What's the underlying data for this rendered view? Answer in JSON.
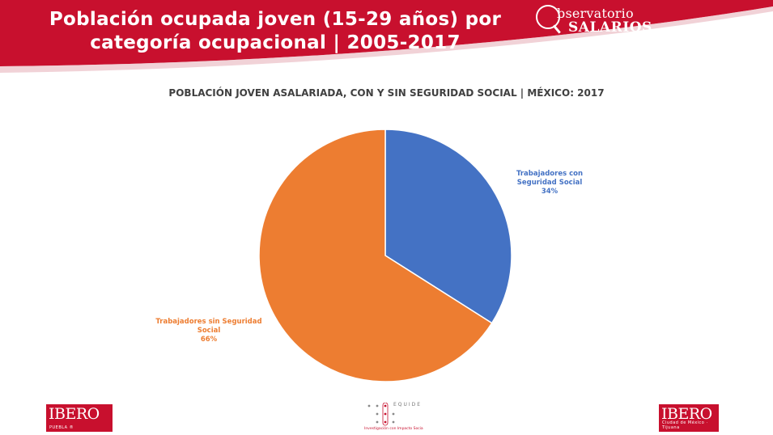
{
  "header": {
    "title_line1": "Población ocupada joven (15-29 años) por",
    "title_line2": "categoría ocupacional | 2005-2017",
    "brand_line1": "bservatorio",
    "brand_line2": "SALARIOS",
    "brand_color": "#C8102E"
  },
  "chart_data": {
    "type": "pie",
    "title": "POBLACIÓN JOVEN ASALARIADA, CON Y SIN SEGURIDAD SOCIAL | MÉXICO: 2017",
    "slices": [
      {
        "label": "Trabajadores con Seguridad Social",
        "value": 34,
        "display": "34%",
        "color": "#4472C4"
      },
      {
        "label": "Trabajadores sin Seguridad Social",
        "value": 66,
        "display": "66%",
        "color": "#ED7D31"
      }
    ],
    "start": "12 o'clock",
    "direction": "clockwise"
  },
  "footer": {
    "logo_left_word": "IBERO",
    "logo_left_sub": "PUEBLA ®",
    "equide_name": "EQUIDE",
    "equide_tagline": "Investigación con Impacto Socia",
    "logo_right_word": "IBERO",
    "logo_right_sub": "Ciudad de México · Tijuana"
  }
}
